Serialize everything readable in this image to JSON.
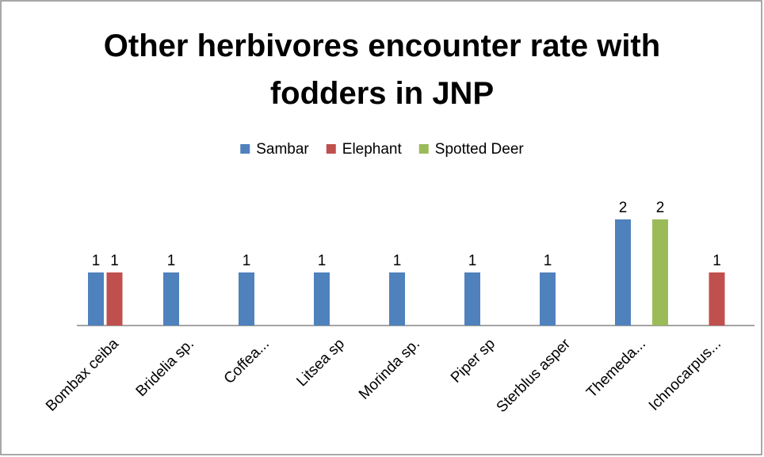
{
  "chart_data": {
    "type": "bar",
    "title": "Other herbivores encounter rate with fodders in JNP",
    "categories": [
      "Bombax ceiba",
      "Bridelia sp.",
      "Coffea...",
      "Litsea sp",
      "Morinda sp.",
      "Piper sp",
      "Sterblus asper",
      "Themeda...",
      "Ichnocarpus..."
    ],
    "series": [
      {
        "name": "Sambar",
        "color": "#4f81bd",
        "values": [
          1,
          1,
          1,
          1,
          1,
          1,
          1,
          2,
          null
        ]
      },
      {
        "name": "Elephant",
        "color": "#c0504d",
        "values": [
          1,
          null,
          null,
          null,
          null,
          null,
          null,
          null,
          1
        ]
      },
      {
        "name": "Spotted Deer",
        "color": "#9bbb59",
        "values": [
          null,
          null,
          null,
          null,
          null,
          null,
          null,
          2,
          null
        ]
      }
    ],
    "legend": "top",
    "data_labels": true
  }
}
